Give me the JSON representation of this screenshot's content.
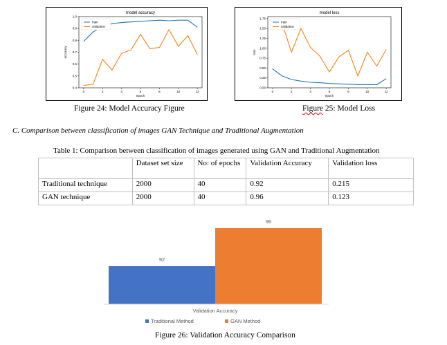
{
  "figures": {
    "accuracy_caption": "Figure 24: Model Accuracy Figure",
    "loss_caption_word": "Figure",
    "loss_caption_rest": " 25: Model Loss",
    "bar_caption": "Figure 26: Validation Accuracy Comparison"
  },
  "section": {
    "heading": "C.   Comparison between classification of images GAN Technique and Traditional Augmentation"
  },
  "table": {
    "caption": "Table 1: Comparison between classification of images generated using GAN and Traditional Augmentation",
    "headers": [
      "",
      "Dataset set size",
      "No: of epochs",
      "Validation Accuracy",
      "Validation loss"
    ],
    "rows": [
      [
        "Traditional technique",
        "2000",
        "40",
        "0.92",
        "0.215"
      ],
      [
        "GAN technique",
        "2000",
        "40",
        "0.96",
        "0.123"
      ]
    ]
  },
  "chart_data": [
    {
      "type": "line",
      "title": "model accuracy",
      "xlabel": "epoch",
      "ylabel": "accuracy",
      "xlim": [
        -0.5,
        12.5
      ],
      "ylim": [
        0.4,
        1.0
      ],
      "xticks": [
        0,
        2,
        4,
        6,
        8,
        10,
        12
      ],
      "yticks": [
        0.4,
        0.5,
        0.6,
        0.7,
        0.8,
        0.9,
        1.0
      ],
      "legend": "top-left",
      "x": [
        0,
        1,
        2,
        3,
        4,
        5,
        6,
        7,
        8,
        9,
        10,
        11,
        12
      ],
      "series": [
        {
          "name": "train",
          "color": "#1f77b4",
          "values": [
            0.79,
            0.87,
            0.92,
            0.94,
            0.95,
            0.955,
            0.96,
            0.965,
            0.97,
            0.965,
            0.97,
            0.97,
            0.91
          ]
        },
        {
          "name": "validation",
          "color": "#ff7f0e",
          "values": [
            0.42,
            0.43,
            0.64,
            0.55,
            0.69,
            0.72,
            0.85,
            0.73,
            0.74,
            0.89,
            0.75,
            0.84,
            0.68
          ]
        }
      ]
    },
    {
      "type": "line",
      "title": "model loss",
      "xlabel": "epoch",
      "ylabel": "loss",
      "xlim": [
        -0.5,
        12.5
      ],
      "ylim": [
        0.0,
        1.8
      ],
      "xticks": [
        0,
        2,
        4,
        6,
        8,
        10,
        12
      ],
      "yticks": [
        0.0,
        0.25,
        0.5,
        0.75,
        1.0,
        1.25,
        1.5,
        1.75
      ],
      "legend": "top-left",
      "x": [
        0,
        1,
        2,
        3,
        4,
        5,
        6,
        7,
        8,
        9,
        10,
        11,
        12
      ],
      "series": [
        {
          "name": "train",
          "color": "#1f77b4",
          "values": [
            0.48,
            0.3,
            0.21,
            0.17,
            0.14,
            0.13,
            0.11,
            0.1,
            0.09,
            0.08,
            0.08,
            0.08,
            0.23
          ]
        },
        {
          "name": "validation",
          "color": "#ff7f0e",
          "values": [
            1.7,
            1.65,
            0.9,
            1.5,
            1.02,
            0.8,
            0.4,
            0.78,
            0.95,
            0.3,
            0.9,
            0.55,
            0.97
          ]
        }
      ]
    },
    {
      "type": "bar",
      "categories": [
        "Validation Accuracy"
      ],
      "series": [
        {
          "name": "Traditional Method",
          "color": "#4472c4",
          "values": [
            92
          ]
        },
        {
          "name": "GAN Method",
          "color": "#ed7d31",
          "values": [
            96
          ]
        }
      ],
      "xlabel": "",
      "ylabel": "",
      "legend": "bottom",
      "grid": false
    }
  ]
}
